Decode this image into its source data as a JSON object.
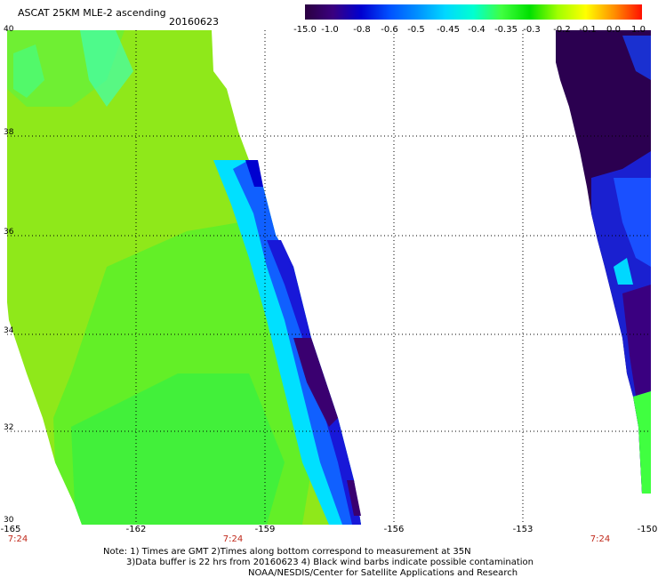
{
  "header": {
    "title": "ASCAT 25KM MLE-2 ascending",
    "date": "20160623"
  },
  "colorbar": {
    "labels": [
      "-15.0",
      "-1.0",
      "-0.8",
      "-0.6",
      "-0.5",
      "-0.45",
      "-0.4",
      "-0.35",
      "-0.3",
      "-0.2",
      "-0.1",
      "0.0",
      "1.0"
    ],
    "colors": [
      "#2b0040",
      "#3a0080",
      "#0000d0",
      "#0050ff",
      "#0090ff",
      "#00d8ff",
      "#00ffd0",
      "#40ff40",
      "#00e000",
      "#a0ff00",
      "#ffff00",
      "#ff9000",
      "#ff1000"
    ]
  },
  "map": {
    "latitude_labels": [
      "40",
      "38",
      "36",
      "34",
      "32",
      "30"
    ],
    "longitude_labels": [
      "-165",
      "-162",
      "-159",
      "-156",
      "-153",
      "-150"
    ],
    "time_labels": [
      "7:24",
      "7:24",
      "7:24"
    ]
  },
  "footer": {
    "note_line1": "Note: 1) Times are GMT 2)Times along bottom correspond to measurement at 35N",
    "note_line2": "3)Data buffer is 22 hrs from 20160623 4) Black wind barbs indicate possible contamination",
    "credit": "NOAA/NESDIS/Center for Satellite Applications and Research"
  },
  "colors": {
    "background": "#ffffff",
    "grid": "#000000",
    "time_label": "#c0291b"
  }
}
